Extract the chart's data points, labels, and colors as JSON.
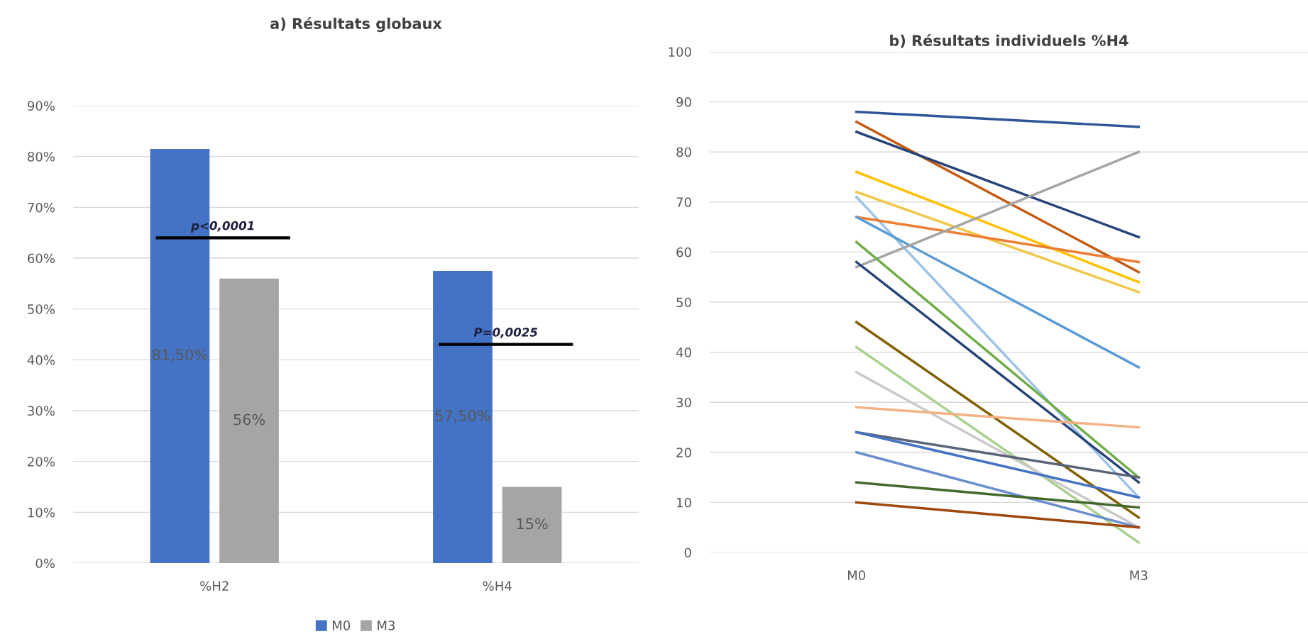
{
  "chart_data": [
    {
      "type": "bar",
      "title": "a) Résultats globaux",
      "categories": [
        "%H2",
        "%H4"
      ],
      "series": [
        {
          "name": "M0",
          "color": "#4472c4",
          "values": [
            81.5,
            57.5
          ],
          "value_labels": [
            "81,50%",
            "57,50%"
          ]
        },
        {
          "name": "M3",
          "color": "#a5a5a5",
          "values": [
            56,
            15
          ],
          "value_labels": [
            "56%",
            "15%"
          ]
        }
      ],
      "ylim": [
        0,
        90
      ],
      "yticks": [
        {
          "value": 0,
          "label": "0%"
        },
        {
          "value": 10,
          "label": "10%"
        },
        {
          "value": 20,
          "label": "20%"
        },
        {
          "value": 30,
          "label": "30%"
        },
        {
          "value": 40,
          "label": "40%"
        },
        {
          "value": 50,
          "label": "50%"
        },
        {
          "value": 60,
          "label": "60%"
        },
        {
          "value": 70,
          "label": "70%"
        },
        {
          "value": 80,
          "label": "80%"
        },
        {
          "value": 90,
          "label": "90%"
        }
      ],
      "grid": "y",
      "legend": "bottom",
      "annotations": [
        "p<0,0001",
        "P=0,0025"
      ]
    },
    {
      "type": "line",
      "title": "b) Résultats individuels %H4",
      "categories": [
        "M0",
        "M3"
      ],
      "series": [
        {
          "color": "#2f5597",
          "values": [
            88,
            85
          ]
        },
        {
          "color": "#c55a11",
          "values": [
            86,
            56
          ]
        },
        {
          "color": "#264478",
          "values": [
            84,
            63
          ]
        },
        {
          "color": "#ffc000",
          "values": [
            76,
            54
          ]
        },
        {
          "color": "#f2c84b",
          "values": [
            72,
            52
          ]
        },
        {
          "color": "#9dc3e6",
          "values": [
            71,
            11
          ]
        },
        {
          "color": "#ed7d31",
          "values": [
            67,
            58
          ]
        },
        {
          "color": "#5b9bd5",
          "values": [
            67,
            37
          ]
        },
        {
          "color": "#a5a5a5",
          "values": [
            57,
            80
          ]
        },
        {
          "color": "#70ad47",
          "values": [
            62,
            15
          ]
        },
        {
          "color": "#264478",
          "values": [
            58,
            14
          ]
        },
        {
          "color": "#806000",
          "values": [
            46,
            7
          ]
        },
        {
          "color": "#a9d18e",
          "values": [
            41,
            2
          ]
        },
        {
          "color": "#c9c9c9",
          "values": [
            36,
            5
          ]
        },
        {
          "color": "#f4b183",
          "values": [
            29,
            25
          ]
        },
        {
          "color": "#5a6478",
          "values": [
            24,
            15
          ]
        },
        {
          "color": "#4472c4",
          "values": [
            24,
            11
          ]
        },
        {
          "color": "#698ed0",
          "values": [
            20,
            5
          ]
        },
        {
          "color": "#43682b",
          "values": [
            14,
            9
          ]
        },
        {
          "color": "#9e480e",
          "values": [
            10,
            5
          ]
        }
      ],
      "ylim": [
        0,
        100
      ],
      "yticks": [
        0,
        10,
        20,
        30,
        40,
        50,
        60,
        70,
        80,
        90,
        100
      ],
      "grid": "y",
      "marker": "none",
      "line_style": "solid"
    }
  ]
}
